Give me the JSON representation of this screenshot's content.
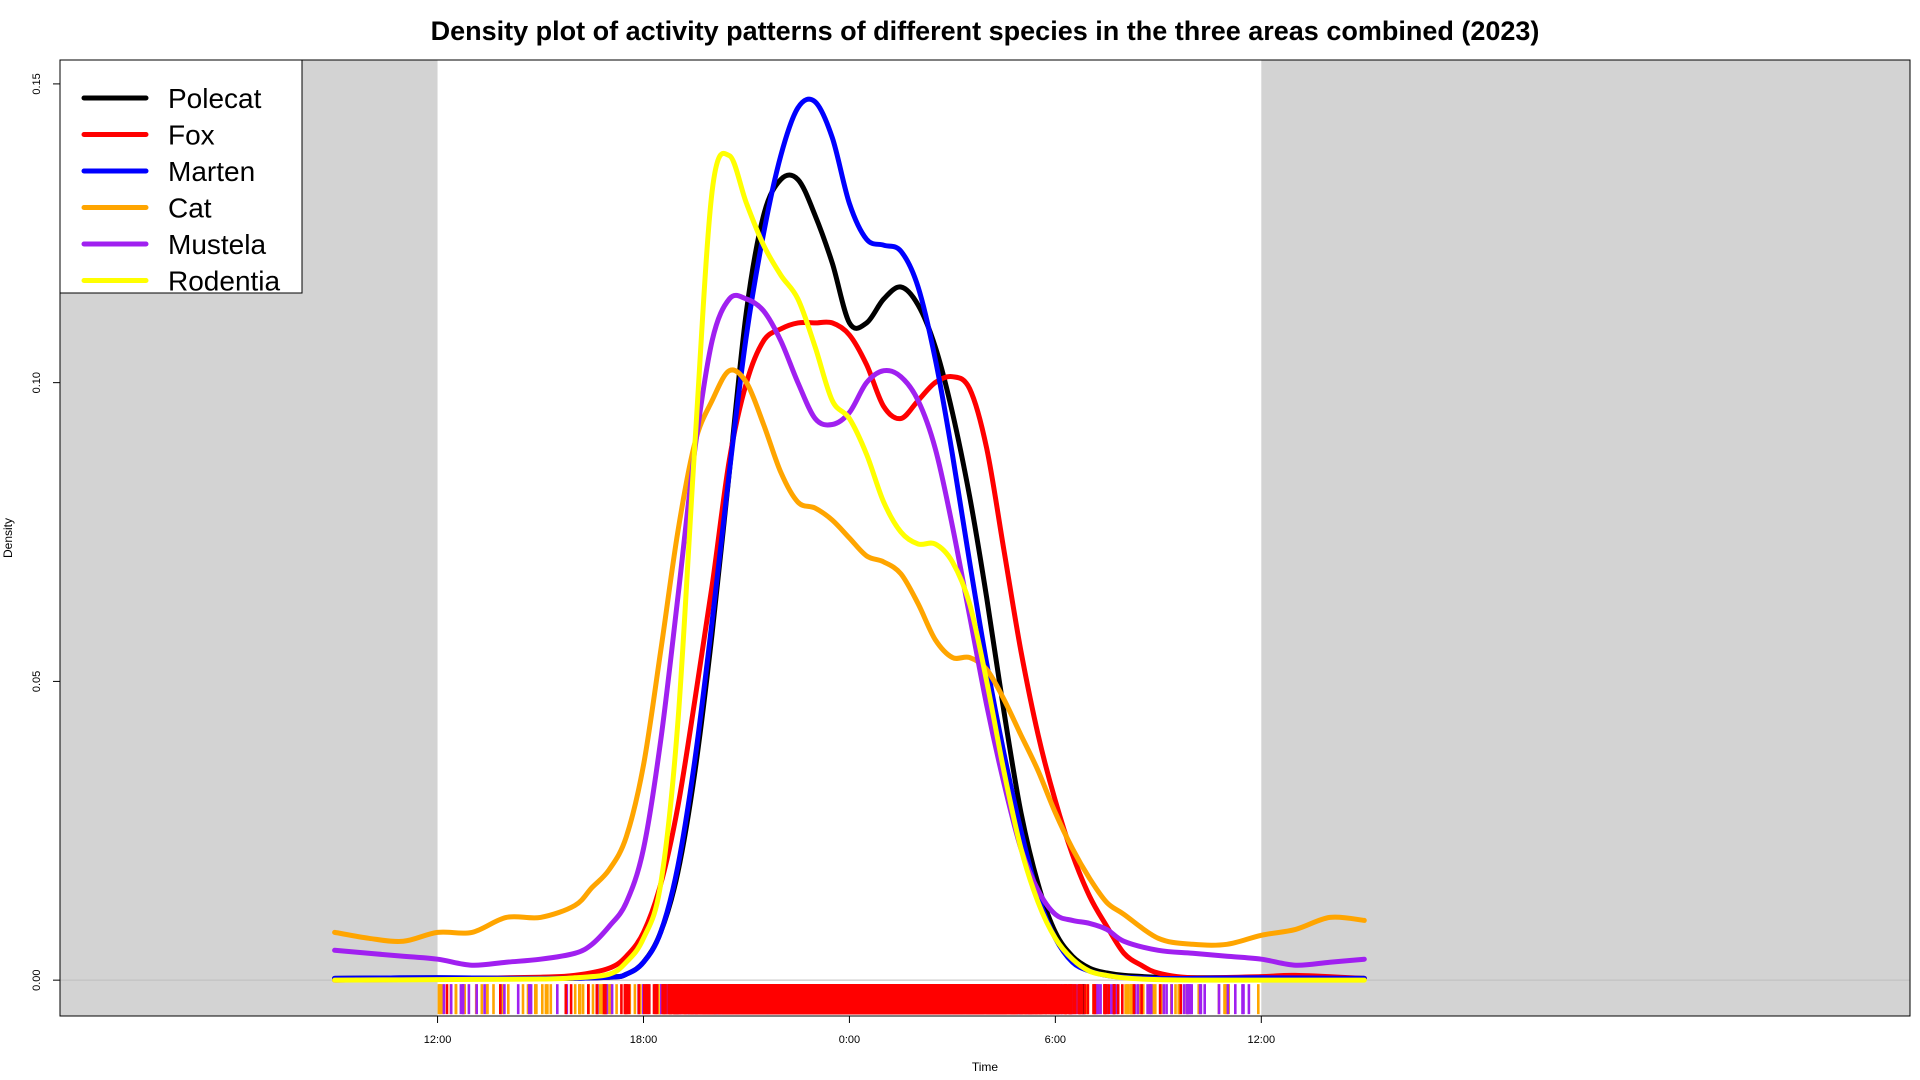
{
  "chart_data": {
    "type": "line",
    "title": "Density plot of activity patterns of different species in the three areas combined (2023)",
    "xlabel": "Time",
    "ylabel": "Density",
    "xlim": [
      -23,
      30.9
    ],
    "ylim": [
      -0.006,
      0.154
    ],
    "x_tick_labels": [
      {
        "x": -12,
        "label": "12:00"
      },
      {
        "x": -6,
        "label": "18:00"
      },
      {
        "x": 0,
        "label": "0:00"
      },
      {
        "x": 6,
        "label": "6:00"
      },
      {
        "x": 12,
        "label": "12:00"
      }
    ],
    "y_ticks": [
      {
        "y": 0.0,
        "label": "0.00"
      },
      {
        "y": 0.05,
        "label": "0.05"
      },
      {
        "y": 0.1,
        "label": "0.10"
      },
      {
        "y": 0.15,
        "label": "0.15"
      }
    ],
    "shaded_ranges": [
      [
        -23,
        -12
      ],
      [
        12,
        30.9
      ]
    ],
    "legend_position": "top-left",
    "series": [
      {
        "name": "Polecat",
        "color": "#000000",
        "x": [
          -15,
          -12,
          -9,
          -7,
          -6.5,
          -6,
          -5.5,
          -5,
          -4.5,
          -4,
          -3.5,
          -3,
          -2.5,
          -2,
          -1.5,
          -1,
          -0.5,
          0,
          0.5,
          1,
          1.5,
          2,
          2.5,
          3,
          3.5,
          4,
          4.5,
          5,
          5.5,
          6,
          6.5,
          7,
          7.5,
          8,
          9,
          10,
          12,
          15
        ],
        "y": [
          0.0003,
          0.0004,
          0.0003,
          0.0005,
          0.001,
          0.003,
          0.008,
          0.018,
          0.035,
          0.058,
          0.085,
          0.112,
          0.128,
          0.134,
          0.134,
          0.128,
          0.12,
          0.11,
          0.11,
          0.114,
          0.116,
          0.113,
          0.106,
          0.095,
          0.081,
          0.064,
          0.045,
          0.028,
          0.016,
          0.008,
          0.004,
          0.002,
          0.0012,
          0.0008,
          0.0005,
          0.0004,
          0.0004,
          0.0003
        ]
      },
      {
        "name": "Fox",
        "color": "#ff0000",
        "x": [
          -15,
          -12,
          -9,
          -8,
          -7,
          -6.5,
          -6,
          -5.5,
          -5,
          -4.5,
          -4,
          -3.5,
          -3,
          -2.5,
          -2,
          -1.5,
          -1,
          -0.5,
          0,
          0.5,
          1,
          1.5,
          2,
          2.5,
          3,
          3.5,
          4,
          4.5,
          5,
          5.5,
          6,
          6.5,
          7,
          7.5,
          8,
          8.5,
          9,
          10,
          12,
          13,
          15
        ],
        "y": [
          0.0,
          0.0002,
          0.0005,
          0.0008,
          0.002,
          0.004,
          0.008,
          0.016,
          0.029,
          0.047,
          0.066,
          0.087,
          0.1,
          0.107,
          0.109,
          0.11,
          0.11,
          0.11,
          0.108,
          0.103,
          0.096,
          0.094,
          0.097,
          0.1,
          0.101,
          0.099,
          0.089,
          0.072,
          0.055,
          0.041,
          0.03,
          0.021,
          0.014,
          0.009,
          0.0045,
          0.0025,
          0.0012,
          0.0004,
          0.0006,
          0.0008,
          0.0003
        ]
      },
      {
        "name": "Marten",
        "color": "#0000ff",
        "x": [
          -15,
          -12,
          -9,
          -7,
          -6.5,
          -6,
          -5.5,
          -5,
          -4.5,
          -4,
          -3.5,
          -3,
          -2.5,
          -2,
          -1.5,
          -1,
          -0.5,
          0,
          0.5,
          1,
          1.5,
          2,
          2.5,
          3,
          3.5,
          4,
          4.5,
          5,
          5.5,
          6,
          6.5,
          7,
          7.5,
          8,
          9,
          10,
          12,
          15
        ],
        "y": [
          0.0003,
          0.0004,
          0.0003,
          0.0005,
          0.001,
          0.003,
          0.008,
          0.019,
          0.037,
          0.06,
          0.085,
          0.108,
          0.125,
          0.138,
          0.146,
          0.147,
          0.141,
          0.13,
          0.124,
          0.123,
          0.122,
          0.116,
          0.104,
          0.088,
          0.07,
          0.053,
          0.038,
          0.025,
          0.014,
          0.007,
          0.003,
          0.0015,
          0.0008,
          0.0005,
          0.0003,
          0.0003,
          0.0004,
          0.0003
        ]
      },
      {
        "name": "Cat",
        "color": "#ffa500",
        "x": [
          -15,
          -14,
          -13,
          -12,
          -11,
          -10,
          -9,
          -8,
          -7.5,
          -7,
          -6.5,
          -6,
          -5.5,
          -5,
          -4.5,
          -4,
          -3.5,
          -3,
          -2.5,
          -2,
          -1.5,
          -1,
          -0.5,
          0,
          0.5,
          1,
          1.5,
          2,
          2.5,
          3,
          3.5,
          4,
          4.5,
          5,
          5.5,
          6,
          6.5,
          7,
          7.5,
          8,
          9,
          10,
          11,
          12,
          13,
          14,
          15
        ],
        "y": [
          0.008,
          0.007,
          0.0065,
          0.008,
          0.008,
          0.0105,
          0.0105,
          0.0125,
          0.0155,
          0.0185,
          0.024,
          0.036,
          0.055,
          0.075,
          0.09,
          0.097,
          0.102,
          0.1,
          0.093,
          0.085,
          0.08,
          0.079,
          0.077,
          0.074,
          0.071,
          0.07,
          0.068,
          0.063,
          0.057,
          0.054,
          0.054,
          0.052,
          0.047,
          0.041,
          0.035,
          0.028,
          0.022,
          0.017,
          0.013,
          0.011,
          0.007,
          0.006,
          0.006,
          0.0075,
          0.0085,
          0.0105,
          0.01
        ]
      },
      {
        "name": "Mustela",
        "color": "#a020f0",
        "x": [
          -15,
          -13,
          -12,
          -11,
          -10,
          -9,
          -8,
          -7.5,
          -7,
          -6.5,
          -6,
          -5.5,
          -5,
          -4.5,
          -4,
          -3.5,
          -3,
          -2.5,
          -2,
          -1.5,
          -1,
          -0.5,
          0,
          0.5,
          1,
          1.5,
          2,
          2.5,
          3,
          3.5,
          4,
          4.5,
          5,
          5.5,
          6,
          6.5,
          7,
          7.5,
          8,
          9,
          10,
          11,
          12,
          13,
          14,
          15
        ],
        "y": [
          0.005,
          0.004,
          0.0035,
          0.0025,
          0.003,
          0.0035,
          0.0045,
          0.006,
          0.009,
          0.013,
          0.022,
          0.04,
          0.064,
          0.089,
          0.107,
          0.114,
          0.114,
          0.112,
          0.107,
          0.1,
          0.094,
          0.093,
          0.095,
          0.1,
          0.102,
          0.101,
          0.097,
          0.089,
          0.076,
          0.061,
          0.046,
          0.033,
          0.022,
          0.015,
          0.011,
          0.01,
          0.0095,
          0.0085,
          0.0065,
          0.005,
          0.0045,
          0.004,
          0.0035,
          0.0025,
          0.003,
          0.0035
        ]
      },
      {
        "name": "Rodentia",
        "color": "#ffff00",
        "x": [
          -15,
          -12,
          -9,
          -8,
          -7,
          -6.5,
          -6,
          -5.5,
          -5,
          -4.5,
          -4,
          -3.5,
          -3,
          -2.5,
          -2,
          -1.5,
          -1,
          -0.5,
          0,
          0.5,
          1,
          1.5,
          2,
          2.5,
          3,
          3.5,
          4,
          4.5,
          5,
          5.5,
          6,
          6.5,
          7,
          7.5,
          8,
          8.5,
          9,
          10,
          12,
          15
        ],
        "y": [
          0.0,
          0.0001,
          0.0002,
          0.0004,
          0.001,
          0.003,
          0.007,
          0.016,
          0.043,
          0.09,
          0.132,
          0.138,
          0.13,
          0.123,
          0.118,
          0.114,
          0.106,
          0.097,
          0.094,
          0.088,
          0.08,
          0.075,
          0.073,
          0.073,
          0.07,
          0.063,
          0.05,
          0.035,
          0.022,
          0.013,
          0.007,
          0.0035,
          0.0015,
          0.0008,
          0.0004,
          0.0002,
          0.0001,
          0.0,
          0.0,
          0.0
        ]
      }
    ]
  }
}
